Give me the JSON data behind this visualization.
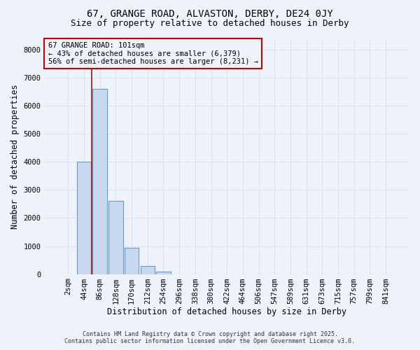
{
  "title_line1": "67, GRANGE ROAD, ALVASTON, DERBY, DE24 0JY",
  "title_line2": "Size of property relative to detached houses in Derby",
  "xlabel": "Distribution of detached houses by size in Derby",
  "ylabel": "Number of detached properties",
  "categories": [
    "2sqm",
    "44sqm",
    "86sqm",
    "128sqm",
    "170sqm",
    "212sqm",
    "254sqm",
    "296sqm",
    "338sqm",
    "380sqm",
    "422sqm",
    "464sqm",
    "506sqm",
    "547sqm",
    "589sqm",
    "631sqm",
    "673sqm",
    "715sqm",
    "757sqm",
    "799sqm",
    "841sqm"
  ],
  "values": [
    0,
    4000,
    6600,
    2600,
    950,
    280,
    100,
    0,
    0,
    0,
    0,
    0,
    0,
    0,
    0,
    0,
    0,
    0,
    0,
    0,
    0
  ],
  "bar_color": "#c8d8ee",
  "bar_edge_color": "#6699cc",
  "grid_color": "#d0dce8",
  "background_color": "#eef2fa",
  "ylim": [
    0,
    8400
  ],
  "yticks": [
    0,
    1000,
    2000,
    3000,
    4000,
    5000,
    6000,
    7000,
    8000
  ],
  "vline_x": 1.5,
  "vline_color": "#aa1111",
  "annotation_title": "67 GRANGE ROAD: 101sqm",
  "annotation_line2": "← 43% of detached houses are smaller (6,379)",
  "annotation_line3": "56% of semi-detached houses are larger (8,231) →",
  "annotation_box_color": "#cc0000",
  "footer_line1": "Contains HM Land Registry data © Crown copyright and database right 2025.",
  "footer_line2": "Contains public sector information licensed under the Open Government Licence v3.0.",
  "title_fontsize": 10,
  "subtitle_fontsize": 9,
  "axis_label_fontsize": 8.5,
  "tick_fontsize": 7.5,
  "annotation_fontsize": 7.5
}
